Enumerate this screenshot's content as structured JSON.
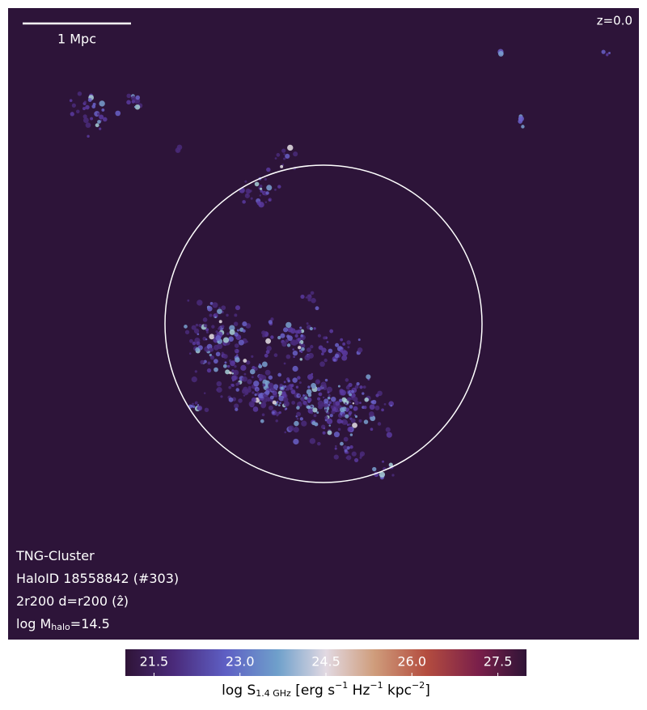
{
  "chart_data": {
    "type": "image",
    "scale_bar": "1 Mpc",
    "redshift": "z=0.0",
    "annotations": [
      {
        "text": "TNG-Cluster"
      },
      {
        "text": "HaloID 18558842 (#303)"
      },
      {
        "text": "2r200 d=r200 (ẑ)"
      },
      {
        "text": "log M",
        "sub": "halo",
        "after": "=14.5"
      }
    ],
    "colorbar": {
      "label": [
        {
          "text": "log S"
        },
        {
          "sub": "1.4 GHz"
        },
        {
          "text": " [erg s"
        },
        {
          "sup": "−1"
        },
        {
          "text": " Hz"
        },
        {
          "sup": "−1"
        },
        {
          "text": " kpc"
        },
        {
          "sup": "−2"
        },
        {
          "text": "]"
        }
      ],
      "lim": [
        21.0,
        28.0
      ],
      "ticks": [
        21.5,
        {
          "value": 23,
          "label": "23.0"
        },
        24.5,
        {
          "value": 26,
          "label": "26.0"
        },
        27.5
      ]
    }
  }
}
